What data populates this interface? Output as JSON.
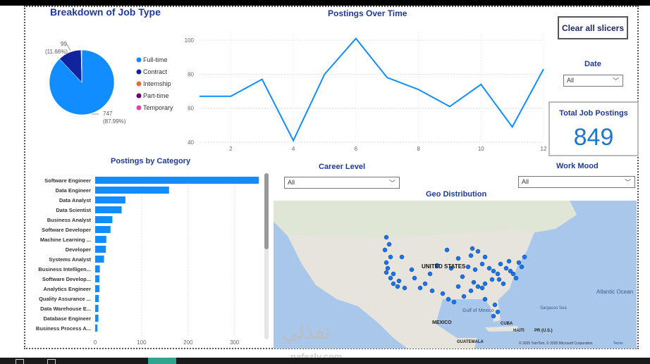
{
  "donut": {
    "title": "Breakdown of Job Type",
    "slices": [
      {
        "name": "Full-time",
        "value": 747,
        "label_value": "747",
        "label_pct": "(87.99%)",
        "color": "#118dff"
      },
      {
        "name": "Contract",
        "value": 99,
        "label_value": "99",
        "label_pct": "(11.66%)",
        "color": "#12239e"
      },
      {
        "name": "Internship",
        "value": 1,
        "color": "#e66c37"
      },
      {
        "name": "Part-time",
        "value": 1,
        "color": "#6b007b"
      },
      {
        "name": "Temporary",
        "value": 1,
        "color": "#e044a7"
      }
    ]
  },
  "clear_slicers": {
    "label": "Clear all slicers"
  },
  "date_slicer": {
    "label": "Date",
    "value": "All"
  },
  "career_slicer": {
    "label": "Career Level",
    "value": "All"
  },
  "workmood_slicer": {
    "label": "Work Mood",
    "value": "All"
  },
  "kpi": {
    "label": "Total Job Postings",
    "value": "849"
  },
  "geo": {
    "title": "Geo Distribution",
    "labels": {
      "us": "UNITED STATES",
      "mexico": "MEXICO",
      "gulf": "Gulf of Mexico",
      "atlantic": "Atlantic Ocean",
      "sargasso": "Sargasso Sea",
      "cuba": "CUBA",
      "haiti": "HAITI",
      "pr": "PR (U.S.)",
      "guatemala": "GUATEMALA",
      "credits": "© 2025 TomTom, © 2025 Microsoft Corporation",
      "terms": "Terms"
    }
  },
  "watermark": {
    "text": "نفذلي",
    "sub": "nafezly.com"
  },
  "chart_data": [
    {
      "type": "line",
      "title": "Postings Over Time",
      "xlabel": "",
      "ylabel": "",
      "x": [
        1,
        2,
        3,
        4,
        5,
        6,
        7,
        8,
        9,
        10,
        11,
        12
      ],
      "series": [
        {
          "values": [
            67,
            67,
            77,
            41,
            80,
            101,
            78,
            71,
            61,
            74,
            49,
            83
          ]
        }
      ],
      "xticks": [
        "2",
        "4",
        "6",
        "8",
        "10",
        "12"
      ],
      "yticks": [
        "40",
        "60",
        "80",
        "100"
      ],
      "xlim": [
        1,
        12
      ],
      "ylim": [
        40,
        105
      ],
      "grid": true,
      "color": "#118dff"
    },
    {
      "type": "bar",
      "title": "Postings by Category",
      "orientation": "horizontal",
      "categories": [
        "Software Engineer",
        "Data Engineer",
        "Data Analyst",
        "Data Scientist",
        "Business Analyst",
        "Software Developer",
        "Machine Learning ...",
        "Developer",
        "Systems Analyst",
        "Business Intelligen...",
        "Software Develop...",
        "Analytics Engineer",
        "Quality Assurance ...",
        "Data Warehouse E...",
        "Database Engineer",
        "Business Process A..."
      ],
      "values": [
        352,
        159,
        65,
        57,
        37,
        33,
        24,
        23,
        19,
        10,
        9,
        9,
        8,
        7,
        7,
        5
      ],
      "xticks": [
        "0",
        "100",
        "200",
        "300"
      ],
      "xlim": [
        0,
        355
      ],
      "grid": true,
      "color": "#118dff"
    }
  ]
}
